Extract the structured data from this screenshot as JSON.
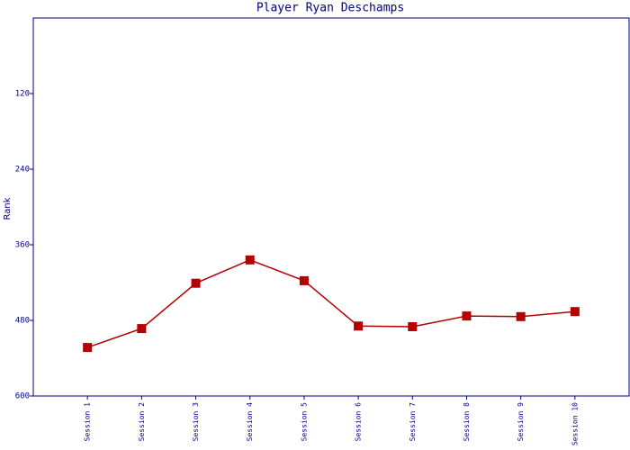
{
  "chart_data": {
    "type": "line",
    "title": "Player Ryan Deschamps",
    "y_label": "Rank",
    "categories": [
      "Session 1",
      "Session 2",
      "Session 3",
      "Session 4",
      "Session 5",
      "Session 6",
      "Session 7",
      "Session 8",
      "Session 9",
      "Session 10"
    ],
    "series": [
      {
        "name": "Rank",
        "color": "#b30000",
        "values": [
          523,
          493,
          421,
          384,
          417,
          489,
          490,
          473,
          474,
          466
        ]
      }
    ],
    "ylim": [
      0,
      600
    ],
    "yticks": [
      120,
      240,
      360,
      480,
      600
    ],
    "y_reversed": true,
    "grid": false,
    "axis_color": "#000080"
  }
}
